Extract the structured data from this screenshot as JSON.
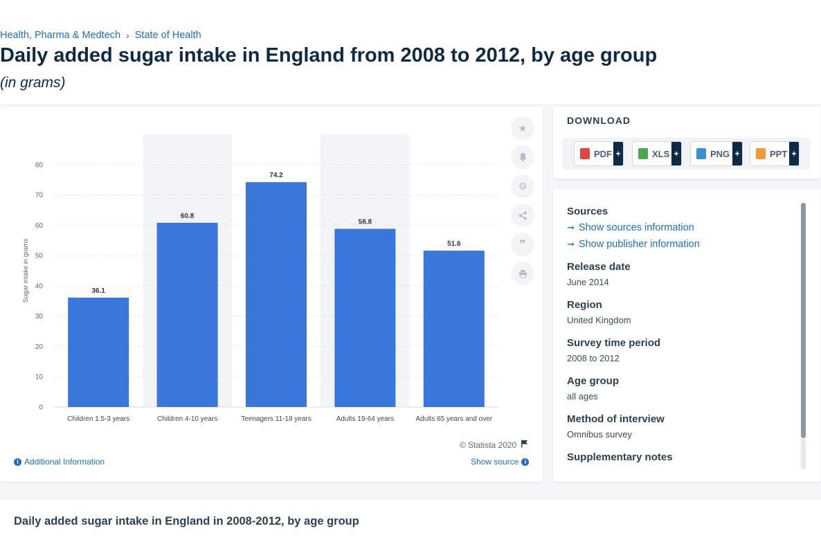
{
  "breadcrumb": [
    "Health, Pharma & Medtech",
    "State of Health"
  ],
  "title": "Daily added sugar intake in England from 2008 to 2012, by age group",
  "subtitle": "(in grams)",
  "chart_data": {
    "type": "bar",
    "categories": [
      "Children 1.5-3 years",
      "Children 4-10 years",
      "Teenagers 11-18 years",
      "Adults 19-64 years",
      "Adults 65 years and over"
    ],
    "values": [
      36.1,
      60.8,
      74.2,
      58.8,
      51.6
    ],
    "data_labels": [
      "36.1",
      "60.8",
      "74.2",
      "58.8",
      "51.6"
    ],
    "ylabel": "Sugar intake in grams",
    "xlabel": "",
    "ylim": [
      0,
      90
    ],
    "yticks": [
      0,
      10,
      20,
      30,
      40,
      50,
      60,
      70,
      80
    ],
    "grid": true,
    "bar_color": "#3a77da",
    "alt_band_color": "#f3f4f6"
  },
  "credit": "© Statista 2020",
  "additional_info": "Additional Information",
  "show_source": "Show source",
  "tools": [
    "star-icon",
    "bell-icon",
    "gear-icon",
    "share-icon",
    "quote-icon",
    "print-icon"
  ],
  "download": {
    "title": "DOWNLOAD",
    "buttons": [
      {
        "label": "PDF",
        "color": "#e0463b"
      },
      {
        "label": "XLS",
        "color": "#4aa84a"
      },
      {
        "label": "PNG",
        "color": "#3c8fd0"
      },
      {
        "label": "PPT",
        "color": "#f09a3a"
      }
    ],
    "plus": "+"
  },
  "meta": {
    "sources_heading": "Sources",
    "show_sources": "Show sources information",
    "show_publisher": "Show publisher information",
    "release_date_heading": "Release date",
    "release_date": "June 2014",
    "region_heading": "Region",
    "region": "United Kingdom",
    "survey_period_heading": "Survey time period",
    "survey_period": "2008 to 2012",
    "age_group_heading": "Age group",
    "age_group": "all ages",
    "method_heading": "Method of interview",
    "method": "Omnibus survey",
    "supplementary_heading": "Supplementary notes"
  },
  "bottom_title": "Daily added sugar intake in England in 2008-2012, by age group"
}
